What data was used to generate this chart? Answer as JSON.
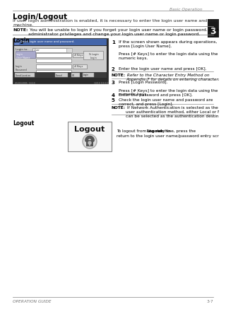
{
  "page_title": "Basic Operation",
  "section_title": "Login/Logout",
  "tab_number": "3",
  "intro_text": "If user login administration is enabled, it is necessary to enter the login user name and password to use the\nmachine.",
  "note1_label": "NOTE:",
  "note1_text": " You will be unable to login if you forget your login user name or login password. In this event, login with\nadministrator privileges and change your login user name or login password.",
  "login_heading": "Login",
  "step1_num": "1",
  "step1_text": "If the screen shown appears during operations,\npress [Login User Name].\n\nPress [# Keys] to enter the login data using the\nnumeric keys.",
  "step2_num": "2",
  "step2_text": "Enter the login user name and press [OK].",
  "note2_label": "NOTE:",
  "note2_text": " Refer to the Character Entry Method on\nAppendix-7 for details on entering characters.",
  "step3_num": "3",
  "step3_text": "Press [Login Password].\n\nPress [# Keys] to enter the login data using the\nnumeric keys.",
  "step4_num": "4",
  "step4_text": "Enter the password and press [OK].",
  "step5_num": "5",
  "step5_text": "Check the login user name and password are\ncorrect, and press [Login].",
  "note3_label": "NOTE:",
  "note3_text": " If Network Authentication is selected as the\nuser authentication method, either Local or Network\ncan be selected as the authentication destination.",
  "logout_heading": "Logout",
  "logout_button_text": "Logout",
  "logout_desc1": "To logout from the machine, press the ",
  "logout_desc_bold": "Logout",
  "logout_desc2": " key to\nreturn to the login user name/password entry screen.",
  "footer_left": "OPERATION GUIDE",
  "footer_right": "3-7",
  "bg_color": "#ffffff",
  "text_color": "#000000",
  "tab_bg": "#1a1a1a",
  "tab_text": "#ffffff",
  "line_color": "#999999"
}
